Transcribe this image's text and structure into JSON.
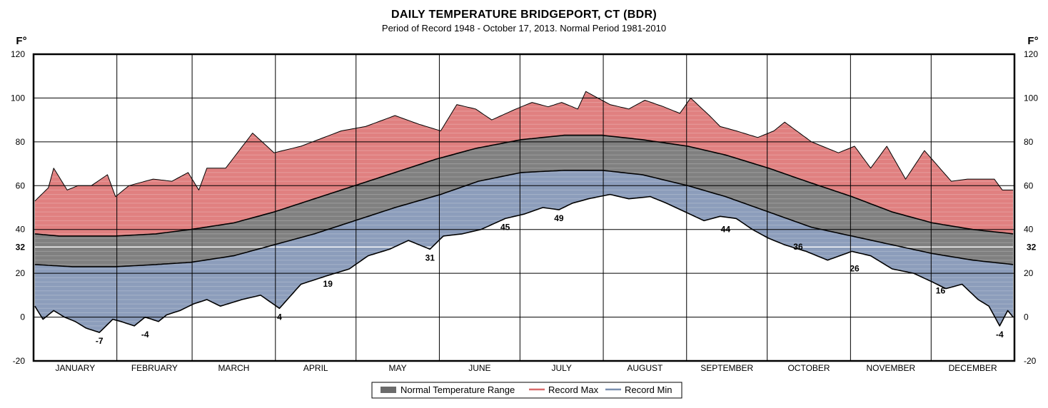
{
  "chart_data": {
    "type": "area",
    "title": "DAILY TEMPERATURE BRIDGEPORT, CT (BDR)",
    "subtitle": "Period of Record 1948 - October 17, 2013.    Normal Period 1981-2010",
    "ylabel": "F°",
    "ylim": [
      -20,
      120
    ],
    "yticks": [
      -20,
      0,
      20,
      40,
      60,
      80,
      100,
      120
    ],
    "extra_ytick": 32,
    "grid": true,
    "legend_position": "bottom-center",
    "months": [
      "JANUARY",
      "FEBRUARY",
      "MARCH",
      "APRIL",
      "MAY",
      "JUNE",
      "JULY",
      "AUGUST",
      "SEPTEMBER",
      "OCTOBER",
      "NOVEMBER",
      "DECEMBER"
    ],
    "month_days": [
      31,
      28,
      31,
      30,
      31,
      30,
      31,
      31,
      30,
      31,
      30,
      31
    ],
    "legend": [
      "Normal Temperature Range",
      "Record Max",
      "Record Min"
    ],
    "colors": {
      "record_max": "#e08080",
      "normal_range": "#808080",
      "record_min": "#8c9dbb",
      "record_max_legend": "#d96b6b",
      "record_min_legend": "#7a8fb0"
    },
    "series": [
      {
        "name": "Record Max",
        "points": [
          [
            1,
            53
          ],
          [
            6,
            59
          ],
          [
            8,
            68
          ],
          [
            13,
            58
          ],
          [
            17,
            60
          ],
          [
            22,
            60
          ],
          [
            28,
            65
          ],
          [
            31,
            55
          ],
          [
            36,
            60
          ],
          [
            45,
            63
          ],
          [
            52,
            62
          ],
          [
            58,
            66
          ],
          [
            62,
            58
          ],
          [
            65,
            68
          ],
          [
            72,
            68
          ],
          [
            82,
            84
          ],
          [
            90,
            75
          ],
          [
            100,
            78
          ],
          [
            115,
            85
          ],
          [
            124,
            87
          ],
          [
            135,
            92
          ],
          [
            144,
            88
          ],
          [
            152,
            85
          ],
          [
            158,
            97
          ],
          [
            165,
            95
          ],
          [
            171,
            90
          ],
          [
            180,
            95
          ],
          [
            186,
            98
          ],
          [
            192,
            96
          ],
          [
            197,
            98
          ],
          [
            203,
            95
          ],
          [
            206,
            103
          ],
          [
            215,
            97
          ],
          [
            222,
            95
          ],
          [
            228,
            99
          ],
          [
            235,
            96
          ],
          [
            241,
            93
          ],
          [
            245,
            100
          ],
          [
            252,
            92
          ],
          [
            256,
            87
          ],
          [
            262,
            85
          ],
          [
            270,
            82
          ],
          [
            276,
            85
          ],
          [
            280,
            89
          ],
          [
            290,
            80
          ],
          [
            300,
            75
          ],
          [
            306,
            78
          ],
          [
            312,
            68
          ],
          [
            318,
            78
          ],
          [
            325,
            63
          ],
          [
            332,
            76
          ],
          [
            342,
            62
          ],
          [
            348,
            63
          ],
          [
            358,
            63
          ],
          [
            361,
            58
          ]
        ]
      },
      {
        "name": "Normal High",
        "points": [
          [
            1,
            38
          ],
          [
            10,
            37
          ],
          [
            31,
            37
          ],
          [
            46,
            38
          ],
          [
            59,
            40
          ],
          [
            75,
            43
          ],
          [
            90,
            48
          ],
          [
            105,
            54
          ],
          [
            120,
            60
          ],
          [
            135,
            66
          ],
          [
            150,
            72
          ],
          [
            165,
            77
          ],
          [
            182,
            81
          ],
          [
            198,
            83
          ],
          [
            212,
            83
          ],
          [
            227,
            81
          ],
          [
            244,
            78
          ],
          [
            258,
            74
          ],
          [
            274,
            68
          ],
          [
            288,
            62
          ],
          [
            305,
            55
          ],
          [
            320,
            48
          ],
          [
            335,
            43
          ],
          [
            350,
            40
          ],
          [
            365,
            38
          ]
        ]
      },
      {
        "name": "Normal Low",
        "points": [
          [
            1,
            24
          ],
          [
            15,
            23
          ],
          [
            31,
            23
          ],
          [
            46,
            24
          ],
          [
            59,
            25
          ],
          [
            75,
            28
          ],
          [
            90,
            33
          ],
          [
            105,
            38
          ],
          [
            120,
            44
          ],
          [
            135,
            50
          ],
          [
            152,
            56
          ],
          [
            166,
            62
          ],
          [
            182,
            66
          ],
          [
            198,
            67
          ],
          [
            212,
            67
          ],
          [
            227,
            65
          ],
          [
            244,
            60
          ],
          [
            258,
            55
          ],
          [
            274,
            48
          ],
          [
            290,
            41
          ],
          [
            305,
            37
          ],
          [
            320,
            33
          ],
          [
            335,
            29
          ],
          [
            350,
            26
          ],
          [
            365,
            24
          ]
        ]
      },
      {
        "name": "Record Min",
        "points": [
          [
            1,
            5
          ],
          [
            4,
            -1
          ],
          [
            8,
            3
          ],
          [
            12,
            0
          ],
          [
            16,
            -2
          ],
          [
            20,
            -5
          ],
          [
            25,
            -7
          ],
          [
            30,
            -1
          ],
          [
            33,
            -2
          ],
          [
            38,
            -4
          ],
          [
            42,
            0
          ],
          [
            47,
            -2
          ],
          [
            50,
            1
          ],
          [
            55,
            3
          ],
          [
            60,
            6
          ],
          [
            65,
            8
          ],
          [
            70,
            5
          ],
          [
            78,
            8
          ],
          [
            85,
            10
          ],
          [
            92,
            4
          ],
          [
            100,
            15
          ],
          [
            110,
            19
          ],
          [
            118,
            22
          ],
          [
            125,
            28
          ],
          [
            133,
            31
          ],
          [
            140,
            35
          ],
          [
            148,
            31
          ],
          [
            153,
            37
          ],
          [
            160,
            38
          ],
          [
            167,
            40
          ],
          [
            176,
            45
          ],
          [
            183,
            47
          ],
          [
            190,
            50
          ],
          [
            196,
            49
          ],
          [
            201,
            52
          ],
          [
            207,
            54
          ],
          [
            215,
            56
          ],
          [
            222,
            54
          ],
          [
            230,
            55
          ],
          [
            236,
            52
          ],
          [
            243,
            48
          ],
          [
            250,
            44
          ],
          [
            256,
            46
          ],
          [
            262,
            45
          ],
          [
            268,
            40
          ],
          [
            274,
            36
          ],
          [
            280,
            33
          ],
          [
            288,
            30
          ],
          [
            296,
            26
          ],
          [
            305,
            30
          ],
          [
            312,
            28
          ],
          [
            320,
            22
          ],
          [
            328,
            20
          ],
          [
            335,
            16
          ],
          [
            340,
            13
          ],
          [
            346,
            15
          ],
          [
            352,
            8
          ],
          [
            356,
            5
          ],
          [
            360,
            -4
          ],
          [
            363,
            3
          ],
          [
            365,
            0
          ]
        ]
      }
    ],
    "annotations": [
      {
        "day": 25,
        "value": -7,
        "label": "-7"
      },
      {
        "day": 42,
        "value": -4,
        "label": "-4"
      },
      {
        "day": 92,
        "value": 4,
        "label": "4"
      },
      {
        "day": 110,
        "value": 19,
        "label": "19"
      },
      {
        "day": 148,
        "value": 31,
        "label": "31"
      },
      {
        "day": 176,
        "value": 45,
        "label": "45"
      },
      {
        "day": 196,
        "value": 49,
        "label": "49"
      },
      {
        "day": 258,
        "value": 44,
        "label": "44"
      },
      {
        "day": 285,
        "value": 36,
        "label": "36"
      },
      {
        "day": 306,
        "value": 26,
        "label": "26"
      },
      {
        "day": 338,
        "value": 16,
        "label": "16"
      },
      {
        "day": 360,
        "value": -4,
        "label": "-4"
      }
    ]
  }
}
